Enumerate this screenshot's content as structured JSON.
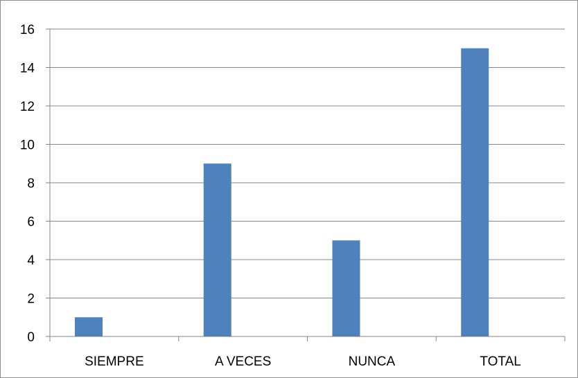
{
  "chart_data": {
    "type": "bar",
    "categories": [
      "SIEMPRE",
      "A VECES",
      "NUNCA",
      "TOTAL"
    ],
    "values": [
      1,
      9,
      5,
      15
    ],
    "title": "",
    "xlabel": "",
    "ylabel": "",
    "ylim": [
      0,
      16
    ],
    "yticks": [
      0,
      2,
      4,
      6,
      8,
      10,
      12,
      14,
      16
    ],
    "grid": true,
    "legend": "none",
    "colors": {
      "bar": "#4f81bd",
      "grid": "#868686",
      "axis": "#868686"
    }
  }
}
